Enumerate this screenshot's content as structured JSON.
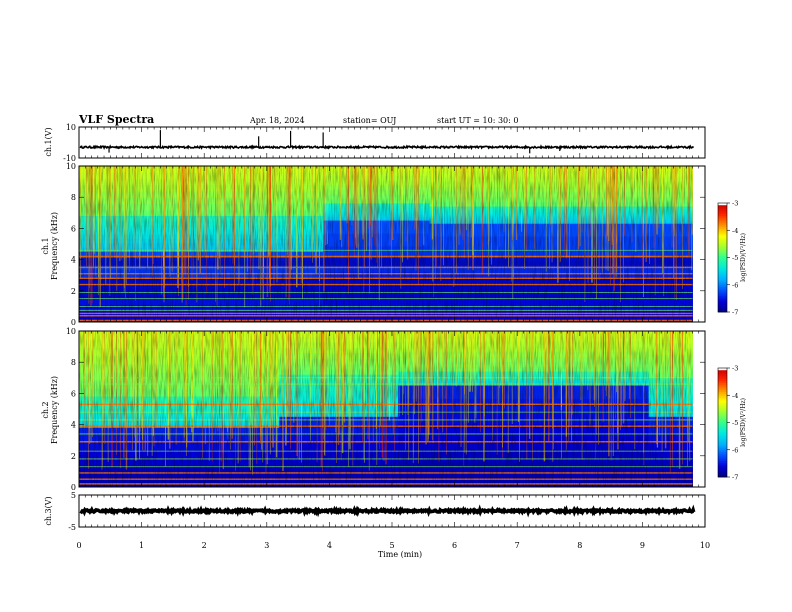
{
  "header": {
    "title": "VLF Spectra",
    "date": "Apr. 18, 2024",
    "station": "station= OUJ",
    "start_ut": "start  UT  =   10: 30: 0"
  },
  "chart_data": [
    {
      "type": "line",
      "panel": "ch1-waveform",
      "ylabel": "ch.1(V)",
      "xlim": [
        0,
        10
      ],
      "ylim": [
        -10,
        10
      ],
      "yticks": [
        "10",
        "-10"
      ],
      "baseline": -3,
      "noise_amplitude": 0.6,
      "spikes": [
        {
          "x": 0.48,
          "y": -6.5
        },
        {
          "x": 1.3,
          "y": 8.0
        },
        {
          "x": 2.87,
          "y": 4.0
        },
        {
          "x": 3.38,
          "y": 7.5
        },
        {
          "x": 3.9,
          "y": 6.5
        },
        {
          "x": 7.2,
          "y": -7.0
        },
        {
          "x": 7.68,
          "y": -5.5
        }
      ],
      "line_color": "#000000"
    },
    {
      "type": "heatmap",
      "panel": "ch1-spectrogram",
      "ylabel": "ch.1\nFrequency (kHz)",
      "xlim": [
        0,
        10
      ],
      "ylim": [
        0,
        10
      ],
      "yticks": [
        "0",
        "2",
        "4",
        "6",
        "8",
        "10"
      ],
      "colorbar": {
        "label": "log(PSD)(V²/Hz)",
        "range": [
          -7,
          -3
        ],
        "ticks": [
          "-3",
          "-4",
          "-5",
          "-6",
          "-7"
        ]
      },
      "segments": [
        {
          "x": [
            0,
            3.9
          ],
          "high": [
            6.8,
            10
          ],
          "mid": [
            4.5,
            6.8
          ],
          "low": [
            0,
            4.5
          ]
        },
        {
          "x": [
            3.9,
            5.6
          ],
          "high": [
            7.6,
            10
          ],
          "mid": [
            6.5,
            7.6
          ],
          "low": [
            0,
            6.5
          ]
        },
        {
          "x": [
            5.6,
            9.8
          ],
          "high": [
            7.4,
            10
          ],
          "mid": [
            6.3,
            7.4
          ],
          "low": [
            0,
            6.3
          ]
        }
      ],
      "level_log_psd": {
        "high": -4.6,
        "mid": -5.4,
        "low": -6.4
      },
      "lines_khz": [
        0.1,
        0.4,
        0.55,
        0.75,
        1.0,
        1.5,
        1.9,
        2.4,
        2.8,
        3.1,
        3.5,
        4.2,
        4.6
      ],
      "dark_band_khz": [
        [
          1.5,
          2.8
        ],
        [
          3.6,
          4.1
        ]
      ]
    },
    {
      "type": "heatmap",
      "panel": "ch2-spectrogram",
      "ylabel": "ch.2\nFrequency (kHz)",
      "xlim": [
        0,
        10
      ],
      "ylim": [
        0,
        10
      ],
      "yticks": [
        "0",
        "2",
        "4",
        "6",
        "8",
        "10"
      ],
      "colorbar": {
        "label": "log(PSD)(V²/Hz)",
        "range": [
          -7,
          -3
        ],
        "ticks": [
          "-3",
          "-4",
          "-5",
          "-6",
          "-7"
        ]
      },
      "segments": [
        {
          "x": [
            0,
            3.2
          ],
          "high": [
            5.8,
            10
          ],
          "mid": [
            3.8,
            5.8
          ],
          "low": [
            0,
            3.8
          ]
        },
        {
          "x": [
            3.2,
            5.1
          ],
          "high": [
            7.2,
            10
          ],
          "mid": [
            4.5,
            7.2
          ],
          "low": [
            0,
            4.5
          ]
        },
        {
          "x": [
            5.1,
            9.1
          ],
          "high": [
            7.4,
            10
          ],
          "mid": [
            6.5,
            7.4
          ],
          "low": [
            0,
            6.5
          ]
        },
        {
          "x": [
            9.1,
            9.8
          ],
          "high": [
            7.0,
            10
          ],
          "mid": [
            4.5,
            7.0
          ],
          "low": [
            0,
            4.5
          ]
        }
      ],
      "level_log_psd": {
        "high": -4.6,
        "mid": -5.3,
        "low": -6.6
      },
      "lines_khz": [
        0.2,
        0.5,
        0.9,
        1.3,
        1.8,
        2.3,
        2.9,
        3.4,
        3.9,
        4.3,
        4.8,
        5.3,
        6.6,
        7.0
      ],
      "dark_band_khz": [
        [
          0,
          1.2
        ]
      ]
    },
    {
      "type": "line",
      "panel": "ch3-waveform",
      "ylabel": "ch.3(V)",
      "xlim": [
        0,
        10
      ],
      "ylim": [
        -5,
        5
      ],
      "yticks": [
        "5",
        "-5"
      ],
      "baseline": 0,
      "noise_amplitude": 0.35,
      "spikes": [],
      "line_color": "#000000"
    }
  ],
  "x_axis": {
    "label": "Time (min)",
    "xlim": [
      0,
      10
    ],
    "ticks": [
      "0",
      "1",
      "2",
      "3",
      "4",
      "5",
      "6",
      "7",
      "8",
      "9",
      "10"
    ]
  },
  "colormap": [
    "#000080",
    "#0000d8",
    "#0050ff",
    "#00b0ff",
    "#00e8e0",
    "#30ff90",
    "#a0ff30",
    "#ffff00",
    "#ff9000",
    "#ff2000",
    "#c00000",
    "#ffffff"
  ]
}
